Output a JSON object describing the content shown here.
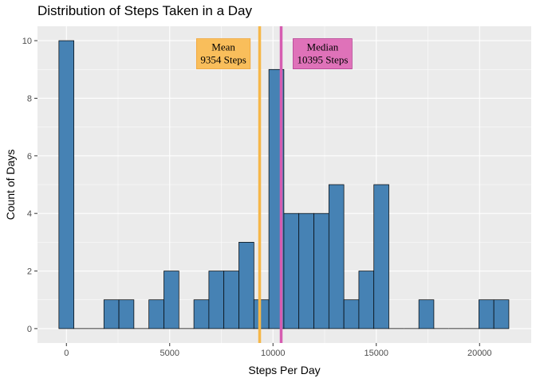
{
  "chart_data": {
    "type": "bar",
    "title": "Distribution of Steps Taken in a Day",
    "xlabel": "Steps Per Day",
    "ylabel": "Count of Days",
    "bin_width": 726,
    "bin_centers": [
      0,
      726,
      1452,
      2178,
      2904,
      3630,
      4356,
      5082,
      5808,
      6534,
      7260,
      7986,
      8712,
      9438,
      10164,
      10890,
      11616,
      12342,
      13068,
      13794,
      14520,
      15246,
      15972,
      16698,
      17424,
      18150,
      18876,
      19602,
      20328,
      21054
    ],
    "values": [
      10,
      0,
      0,
      1,
      1,
      0,
      1,
      2,
      0,
      1,
      2,
      2,
      3,
      1,
      9,
      4,
      4,
      4,
      5,
      1,
      2,
      5,
      0,
      0,
      1,
      0,
      0,
      0,
      1,
      1
    ],
    "xlim": [
      -1400,
      22500
    ],
    "ylim": [
      -0.5,
      10.5
    ],
    "x_ticks": [
      0,
      5000,
      10000,
      15000,
      20000
    ],
    "x_tick_labels": [
      "0",
      "5000",
      "10000",
      "15000",
      "20000"
    ],
    "y_ticks": [
      0,
      2,
      4,
      6,
      8,
      10
    ],
    "y_tick_labels": [
      "0",
      "2",
      "4",
      "6",
      "8",
      "10"
    ],
    "bar_color": "#4682B4",
    "bar_border_color": "#000000",
    "panel_background": "#EBEBEB",
    "grid": true,
    "vlines": [
      {
        "name": "mean",
        "x": 9354,
        "color": "#F6B748"
      },
      {
        "name": "median",
        "x": 10395,
        "color": "#D65DB1"
      }
    ],
    "annotations": [
      {
        "name": "mean",
        "line1": "Mean",
        "line2": "9354 Steps",
        "x": 7600,
        "y": 9.6,
        "fill": "#F9BE5B",
        "border": "#F0A030"
      },
      {
        "name": "median",
        "line1": "Median",
        "line2": "10395 Steps",
        "x": 12400,
        "y": 9.6,
        "fill": "#DF72B9",
        "border": "#B0308A"
      }
    ]
  }
}
